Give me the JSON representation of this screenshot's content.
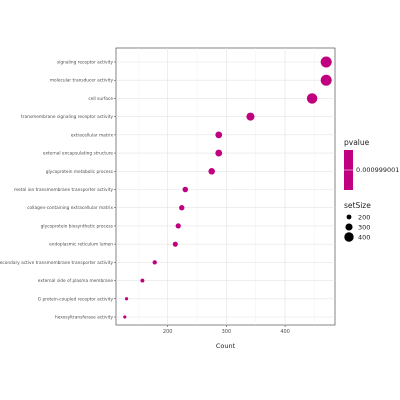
{
  "chart_data": {
    "type": "scatter",
    "xlabel": "Count",
    "xticks": [
      200,
      300,
      400
    ],
    "xlim": [
      112,
      485
    ],
    "grid": true,
    "categories": [
      "signaling receptor activity",
      "molecular transducer activity",
      "cell surface",
      "transmembrane signaling receptor activity",
      "extracellular matrix",
      "external encapsulating structure",
      "glycoprotein metabolic process",
      "metal ion transmembrane transporter activity",
      "collagen-containing extracellular matrix",
      "glycoprotein biosynthetic process",
      "endoplasmic reticulum lumen",
      "secondary active transmembrane transporter activity",
      "external side of plasma membrane",
      "G protein-coupled receptor activity",
      "hexosyltransferase activity"
    ],
    "values": [
      470,
      470,
      446,
      341,
      287,
      287,
      275,
      230,
      224,
      218,
      213,
      178,
      157,
      130,
      127
    ],
    "setSize": [
      470,
      470,
      446,
      341,
      287,
      287,
      275,
      230,
      224,
      218,
      213,
      178,
      157,
      130,
      127
    ],
    "pvalue_color": "#c0007f",
    "legend": {
      "pvalue_title": "pvalue",
      "pvalue_label": "0.000999001",
      "size_title": "setSize",
      "size_values": [
        200,
        300,
        400
      ]
    }
  }
}
